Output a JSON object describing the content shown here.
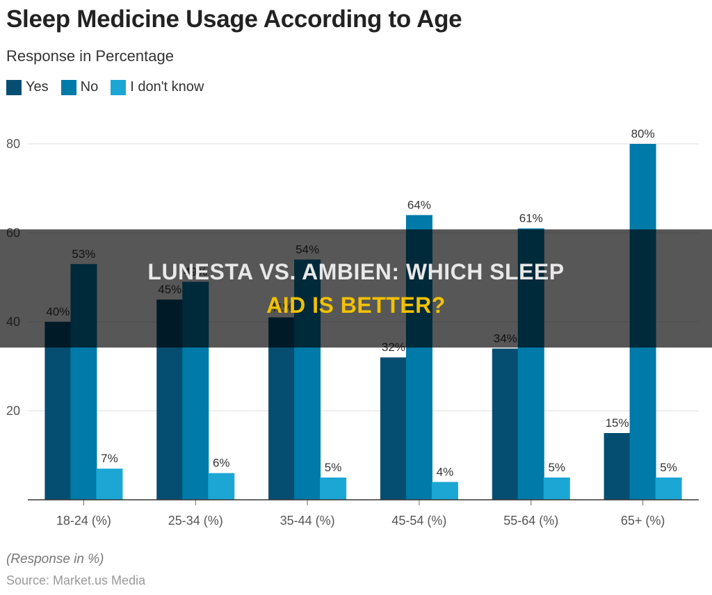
{
  "page": {
    "title": "Sleep Medicine Usage According to Age",
    "subtitle": "Response in Percentage",
    "footnote": "(Response in %)",
    "source": "Source: Market.us Media"
  },
  "banner": {
    "line1": "LUNESTA VS. AMBIEN: WHICH SLEEP",
    "line2": "AID IS BETTER?",
    "line1_color": "#e8e8e8",
    "line2_color": "#f2c200"
  },
  "chart_data": {
    "type": "bar",
    "categories": [
      "18-24 (%)",
      "25-34 (%)",
      "35-44 (%)",
      "45-54 (%)",
      "55-64 (%)",
      "65+ (%)"
    ],
    "series": [
      {
        "name": "Yes",
        "color": "#054e72",
        "values": [
          40,
          45,
          41,
          32,
          34,
          15
        ],
        "labels": [
          "40%",
          "45%",
          "41%",
          "32%",
          "34%",
          "15%"
        ]
      },
      {
        "name": "No",
        "color": "#007aa8",
        "values": [
          53,
          49,
          54,
          64,
          61,
          80
        ],
        "labels": [
          "53%",
          "49%",
          "54%",
          "64%",
          "61%",
          "80%"
        ]
      },
      {
        "name": "I don't know",
        "color": "#1ba6d4",
        "values": [
          7,
          6,
          5,
          4,
          5,
          5
        ],
        "labels": [
          "7%",
          "6%",
          "5%",
          "4%",
          "5%",
          "5%"
        ]
      }
    ],
    "yticks": [
      20,
      40,
      60,
      80
    ],
    "ylim": [
      0,
      80
    ],
    "grid": true,
    "legend": "top-left"
  }
}
